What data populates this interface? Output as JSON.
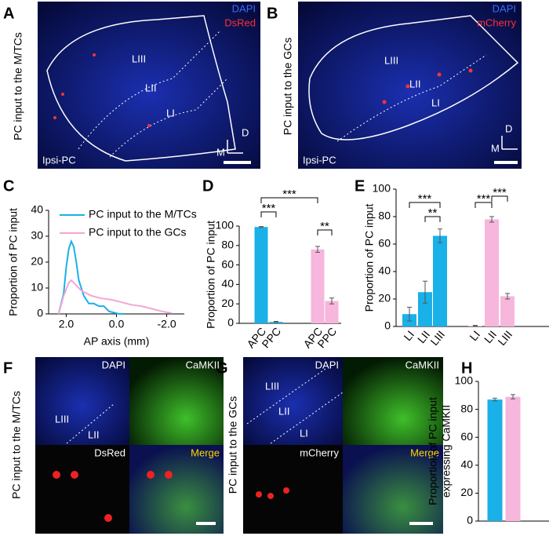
{
  "panel_labels": [
    "A",
    "B",
    "C",
    "D",
    "E",
    "F",
    "G",
    "H"
  ],
  "image_panels": {
    "A": {
      "ylabel": "PC input to the M/TCs",
      "stains": [
        "DAPI",
        "DsRed"
      ],
      "layers": [
        "LIII",
        "LII",
        "LI"
      ],
      "axes": [
        "D",
        "M"
      ],
      "region": "Ipsi-PC"
    },
    "B": {
      "ylabel": "PC input to the GCs",
      "stains": [
        "DAPI",
        "mCherry"
      ],
      "layers": [
        "LIII",
        "LII",
        "LI"
      ],
      "axes": [
        "D",
        "M"
      ],
      "region": "Ipsi-PC"
    },
    "F": {
      "ylabel": "PC input to the M/TCs",
      "tiles": [
        "DAPI",
        "CaMKII",
        "DsRed",
        "Merge"
      ],
      "layers": [
        "LIII",
        "LII"
      ]
    },
    "G": {
      "ylabel": "PC input to the GCs",
      "tiles": [
        "DAPI",
        "CaMKII",
        "mCherry",
        "Merge"
      ],
      "layers": [
        "LIII",
        "LII",
        "LI"
      ]
    }
  },
  "chart_data": [
    {
      "type": "line",
      "ylabel": "Proportion of PC input",
      "xlabel": "AP axis (mm)",
      "xlim": [
        2.7,
        -2.7
      ],
      "xticks": [
        {
          "value": 2,
          "label": "2.0"
        },
        {
          "value": 0,
          "label": "0.0"
        },
        {
          "value": -2,
          "label": "-2.0"
        }
      ],
      "ylim": [
        0,
        40
      ],
      "yticks": [
        0,
        10,
        20,
        30,
        40
      ],
      "legend": "upper right",
      "series": [
        {
          "name": "PC input to the M/TCs",
          "color": "#1ab0e8",
          "x": [
            2.3,
            2.1,
            2.0,
            1.9,
            1.8,
            1.7,
            1.6,
            1.5,
            1.3,
            1.1,
            0.9,
            0.7,
            0.5,
            0.3,
            0.1,
            -0.1,
            -0.3
          ],
          "values": [
            0,
            8,
            18,
            25,
            28,
            26,
            20,
            13,
            7,
            4,
            4,
            3,
            3,
            1,
            0.5,
            0,
            0
          ]
        },
        {
          "name": "PC input to the GCs",
          "color": "#f4a6d7",
          "x": [
            2.3,
            2.1,
            1.9,
            1.8,
            1.6,
            1.4,
            1.2,
            1.0,
            0.6,
            0.2,
            -0.2,
            -0.6,
            -1.0,
            -1.4,
            -1.8,
            -2.2
          ],
          "values": [
            0,
            7,
            12,
            13,
            11,
            9,
            8,
            7,
            6,
            5.5,
            4.5,
            3.5,
            3,
            2,
            1,
            0.3
          ]
        }
      ]
    },
    {
      "type": "bar",
      "ylabel": "Proportion of PC input",
      "categories": [
        "APC",
        "PPC",
        "APC",
        "PPC"
      ],
      "values": [
        99,
        1.5,
        76,
        23
      ],
      "errors": [
        0.5,
        0.5,
        3,
        3
      ],
      "colors": [
        "#1ab0e8",
        "#1ab0e8",
        "#f7b6dc",
        "#f7b6dc"
      ],
      "ylim": [
        0,
        100
      ],
      "yticks": [
        0,
        20,
        40,
        60,
        80,
        100
      ],
      "annotations": [
        "***",
        "***",
        "**"
      ]
    },
    {
      "type": "bar",
      "ylabel": "Proportion of PC input",
      "categories": [
        "LI",
        "LII",
        "LIII",
        "LI",
        "LII",
        "LIII"
      ],
      "values": [
        9,
        25,
        66,
        0.5,
        78,
        22
      ],
      "errors": [
        5,
        8,
        5,
        0.3,
        2,
        2
      ],
      "colors": [
        "#1ab0e8",
        "#1ab0e8",
        "#1ab0e8",
        "#f7b6dc",
        "#f7b6dc",
        "#f7b6dc"
      ],
      "ylim": [
        0,
        100
      ],
      "yticks": [
        0,
        20,
        40,
        60,
        80,
        100
      ],
      "annotations": [
        "***",
        "**",
        "***",
        "***"
      ]
    },
    {
      "type": "bar",
      "ylabel": [
        "Proportion of PC input",
        "expressing CaMKII"
      ],
      "values": [
        87,
        89
      ],
      "errors": [
        1,
        1.5
      ],
      "colors": [
        "#1ab0e8",
        "#f7b6dc"
      ],
      "ylim": [
        0,
        100
      ],
      "yticks": [
        0,
        20,
        40,
        60,
        80,
        100
      ]
    }
  ]
}
